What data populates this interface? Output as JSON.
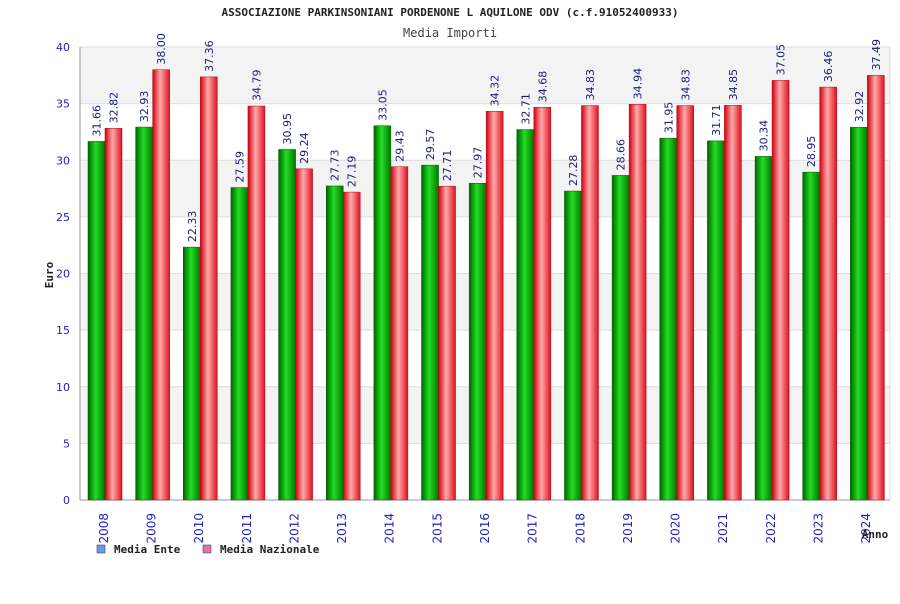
{
  "chart_data": {
    "type": "bar",
    "title": "ASSOCIAZIONE PARKINSONIANI PORDENONE L AQUILONE ODV (c.f.91052400933)",
    "subtitle": "Media Importi",
    "xlabel": "Anno",
    "ylabel": "Euro",
    "ylim": [
      0,
      40
    ],
    "yticks": [
      0,
      5,
      10,
      15,
      20,
      25,
      30,
      35,
      40
    ],
    "categories": [
      "2008",
      "2009",
      "2010",
      "2011",
      "2012",
      "2013",
      "2014",
      "2015",
      "2016",
      "2017",
      "2018",
      "2019",
      "2020",
      "2021",
      "2022",
      "2023",
      "2024"
    ],
    "series": [
      {
        "name": "Media Ente",
        "color": "#00aa00",
        "values": [
          31.66,
          32.93,
          22.33,
          27.59,
          30.95,
          27.73,
          33.05,
          29.57,
          27.97,
          32.71,
          27.28,
          28.66,
          31.95,
          31.71,
          30.34,
          28.95,
          32.92
        ],
        "labels": [
          "31.66",
          "32.93",
          "22.33",
          "27.59",
          "30.95",
          "27.73",
          "33.05",
          "29.57",
          "27.97",
          "32.71",
          "27.28",
          "28.66",
          "31.95",
          "31.71",
          "30.34",
          "28.95",
          "32.92"
        ]
      },
      {
        "name": "Media Nazionale",
        "color": "#e8202a",
        "values": [
          32.82,
          38.0,
          37.36,
          34.79,
          29.24,
          27.19,
          29.43,
          27.71,
          34.32,
          34.68,
          34.83,
          34.94,
          34.83,
          34.85,
          37.05,
          36.46,
          37.49
        ],
        "labels": [
          "32.82",
          "38.00",
          "37.36",
          "34.79",
          "29.24",
          "27.19",
          "29.43",
          "27.71",
          "34.32",
          "34.68",
          "34.83",
          "34.94",
          "34.83",
          "34.85",
          "37.05",
          "36.46",
          "37.49"
        ]
      }
    ],
    "legend": [
      {
        "label": "Media Ente",
        "swatch_color": "#6699ee"
      },
      {
        "label": "Media Nazionale",
        "swatch_color": "#dd77aa"
      }
    ],
    "legend_position": "bottom-left",
    "grid": true
  }
}
